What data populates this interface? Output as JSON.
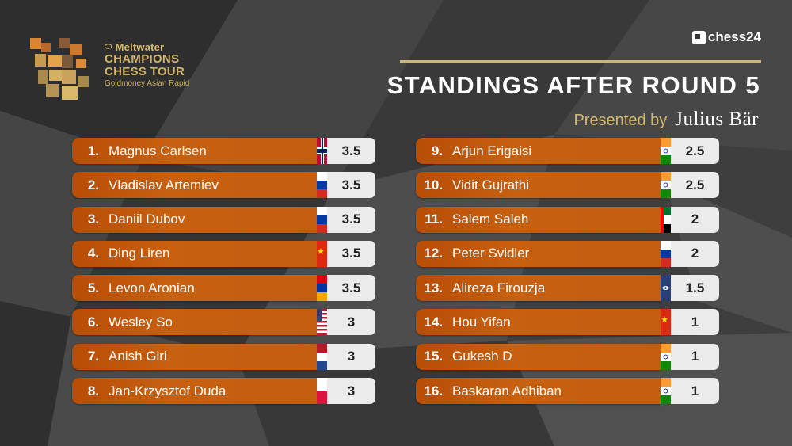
{
  "header": {
    "sponsor": "Meltwater",
    "tour_line1": "CHAMPIONS",
    "tour_line2": "CHESS TOUR",
    "event": "Goldmoney Asian Rapid",
    "site": "chess24",
    "title": "STANDINGS AFTER ROUND 5",
    "presented_label": "Presented by",
    "presenter": "Julius Bär"
  },
  "colors": {
    "bar": "#c35d10",
    "gold": "#c9b67a",
    "score_bg": "#ebebeb"
  },
  "standings_left": [
    {
      "rank": "1.",
      "name": "Magnus Carlsen",
      "score": "3.5",
      "flag": "norway-flag"
    },
    {
      "rank": "2.",
      "name": "Vladislav Artemiev",
      "score": "3.5",
      "flag": "russia-flag"
    },
    {
      "rank": "3.",
      "name": "Daniil Dubov",
      "score": "3.5",
      "flag": "russia-flag"
    },
    {
      "rank": "4.",
      "name": "Ding Liren",
      "score": "3.5",
      "flag": "china-flag"
    },
    {
      "rank": "5.",
      "name": "Levon Aronian",
      "score": "3.5",
      "flag": "armenia-flag"
    },
    {
      "rank": "6.",
      "name": "Wesley So",
      "score": "3",
      "flag": "usa-flag"
    },
    {
      "rank": "7.",
      "name": "Anish Giri",
      "score": "3",
      "flag": "netherlands-flag"
    },
    {
      "rank": "8.",
      "name": "Jan-Krzysztof Duda",
      "score": "3",
      "flag": "poland-flag"
    }
  ],
  "standings_right": [
    {
      "rank": "9.",
      "name": "Arjun Erigaisi",
      "score": "2.5",
      "flag": "india-flag"
    },
    {
      "rank": "10.",
      "name": "Vidit Gujrathi",
      "score": "2.5",
      "flag": "india-flag"
    },
    {
      "rank": "11.",
      "name": "Salem Saleh",
      "score": "2",
      "flag": "uae-flag"
    },
    {
      "rank": "12.",
      "name": "Peter Svidler",
      "score": "2",
      "flag": "russia-flag"
    },
    {
      "rank": "13.",
      "name": "Alireza Firouzja",
      "score": "1.5",
      "flag": "fide-flag"
    },
    {
      "rank": "14.",
      "name": "Hou Yifan",
      "score": "1",
      "flag": "china-flag"
    },
    {
      "rank": "15.",
      "name": "Gukesh D",
      "score": "1",
      "flag": "india-flag"
    },
    {
      "rank": "16.",
      "name": "Baskaran Adhiban",
      "score": "1",
      "flag": "india-flag"
    }
  ]
}
